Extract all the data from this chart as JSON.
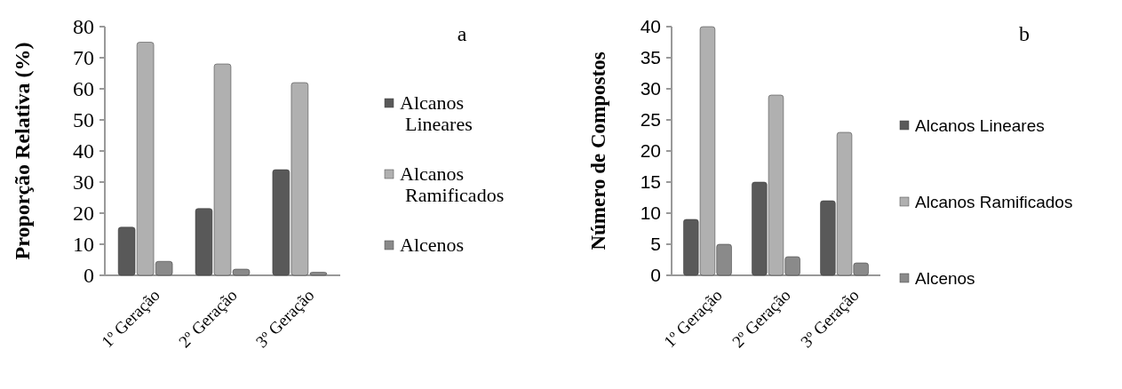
{
  "chart_data": [
    {
      "type": "bar",
      "annotations": [
        "a"
      ],
      "ylabel": "Proporção Relativa (%)",
      "categories": [
        "1º Geração",
        "2º Geração",
        "3º Geração"
      ],
      "series": [
        {
          "name": "Alcanos Lineares",
          "color": "#595959",
          "values": [
            15.5,
            21.5,
            34
          ]
        },
        {
          "name": "Alcanos Ramificados",
          "color": "#b0b0b0",
          "values": [
            75,
            68,
            62
          ]
        },
        {
          "name": "Alcenos",
          "color": "#8a8a8a",
          "values": [
            4.5,
            2,
            1
          ]
        }
      ],
      "ylim": [
        0,
        80
      ],
      "yticks": [
        0,
        10,
        20,
        30,
        40,
        50,
        60,
        70,
        80
      ],
      "legend": "right"
    },
    {
      "type": "bar",
      "annotations": [
        "b"
      ],
      "ylabel": "Número de Compostos",
      "categories": [
        "1º Geração",
        "2º Geração",
        "3º Geração"
      ],
      "series": [
        {
          "name": "Alcanos Lineares",
          "color": "#595959",
          "values": [
            9,
            15,
            12
          ]
        },
        {
          "name": "Alcanos Ramificados",
          "color": "#b0b0b0",
          "values": [
            40,
            29,
            23
          ]
        },
        {
          "name": "Alcenos",
          "color": "#8a8a8a",
          "values": [
            5,
            3,
            2
          ]
        }
      ],
      "ylim": [
        0,
        40
      ],
      "yticks": [
        0,
        5,
        10,
        15,
        20,
        25,
        30,
        35,
        40
      ],
      "legend": "right"
    }
  ]
}
